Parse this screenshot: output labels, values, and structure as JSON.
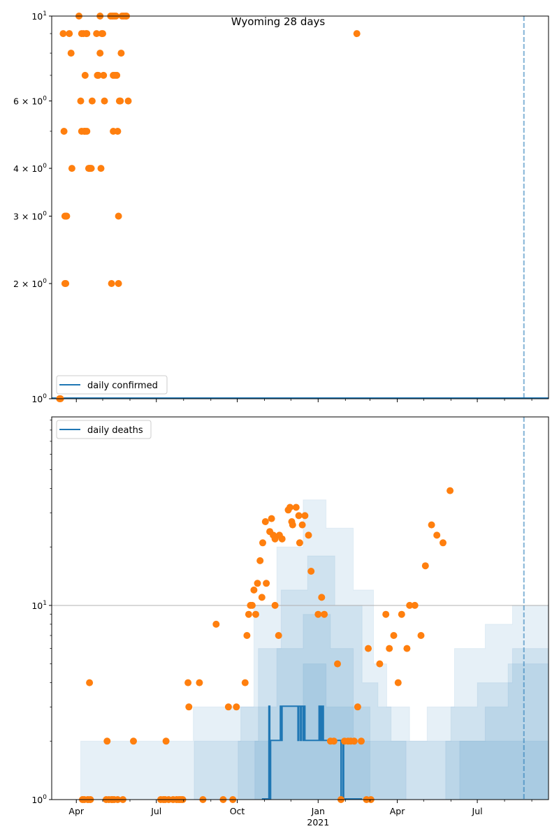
{
  "chart_data": [
    {
      "type": "scatter",
      "title": "Wyoming 28 days",
      "yscale": "log",
      "ylim": [
        1,
        10
      ],
      "xlim": [
        "2020-03-04",
        "2021-09-20"
      ],
      "legend": {
        "entries": [
          "daily confirmed"
        ],
        "placement": "lower-left"
      },
      "y_ticks": [
        {
          "value": 1,
          "base": "10",
          "exp": "0",
          "coef": ""
        },
        {
          "value": 2,
          "base": "10",
          "exp": "0",
          "coef": "2 × "
        },
        {
          "value": 3,
          "base": "10",
          "exp": "0",
          "coef": "3 × "
        },
        {
          "value": 4,
          "base": "10",
          "exp": "0",
          "coef": "4 × "
        },
        {
          "value": 6,
          "base": "10",
          "exp": "0",
          "coef": "6 × "
        },
        {
          "value": 10,
          "base": "10",
          "exp": "1",
          "coef": ""
        }
      ],
      "vline_date": "2021-08-23",
      "line_series": {
        "name": "daily confirmed",
        "color": "#1f77b4",
        "constant_value": 1
      },
      "scatter_color": "#ff7f0e",
      "points": [
        [
          "2020-03-13",
          1
        ],
        [
          "2020-03-14",
          1
        ],
        [
          "2020-03-17",
          9
        ],
        [
          "2020-03-18",
          5
        ],
        [
          "2020-03-19",
          2
        ],
        [
          "2020-03-20",
          2
        ],
        [
          "2020-03-19",
          3
        ],
        [
          "2020-03-20",
          3
        ],
        [
          "2020-03-21",
          3
        ],
        [
          "2020-03-24",
          9
        ],
        [
          "2020-03-26",
          8
        ],
        [
          "2020-03-27",
          4
        ],
        [
          "2020-04-04",
          10
        ],
        [
          "2020-04-06",
          6
        ],
        [
          "2020-04-07",
          5
        ],
        [
          "2020-04-07",
          9
        ],
        [
          "2020-04-09",
          9
        ],
        [
          "2020-04-10",
          5
        ],
        [
          "2020-04-11",
          7
        ],
        [
          "2020-04-11",
          5
        ],
        [
          "2020-04-12",
          9
        ],
        [
          "2020-04-13",
          5
        ],
        [
          "2020-04-13",
          9
        ],
        [
          "2020-04-15",
          4
        ],
        [
          "2020-04-16",
          4
        ],
        [
          "2020-04-17",
          4
        ],
        [
          "2020-04-18",
          4
        ],
        [
          "2020-04-19",
          6
        ],
        [
          "2020-04-24",
          9
        ],
        [
          "2020-04-25",
          7
        ],
        [
          "2020-04-26",
          7
        ],
        [
          "2020-04-28",
          10
        ],
        [
          "2020-04-28",
          8
        ],
        [
          "2020-04-29",
          4
        ],
        [
          "2020-04-30",
          9
        ],
        [
          "2020-05-01",
          9
        ],
        [
          "2020-05-02",
          7
        ],
        [
          "2020-05-03",
          6
        ],
        [
          "2020-05-10",
          10
        ],
        [
          "2020-05-11",
          2
        ],
        [
          "2020-05-12",
          10
        ],
        [
          "2020-05-13",
          5
        ],
        [
          "2020-05-13",
          7
        ],
        [
          "2020-05-14",
          10
        ],
        [
          "2020-05-15",
          7
        ],
        [
          "2020-05-16",
          10
        ],
        [
          "2020-05-17",
          7
        ],
        [
          "2020-05-18",
          5
        ],
        [
          "2020-05-19",
          2
        ],
        [
          "2020-05-19",
          3
        ],
        [
          "2020-05-20",
          6
        ],
        [
          "2020-05-21",
          6
        ],
        [
          "2020-05-22",
          8
        ],
        [
          "2020-05-23",
          10
        ],
        [
          "2020-05-25",
          10
        ],
        [
          "2020-05-27",
          10
        ],
        [
          "2020-05-28",
          10
        ],
        [
          "2020-05-30",
          6
        ],
        [
          "2021-02-14",
          9
        ]
      ]
    },
    {
      "type": "scatter",
      "title": "",
      "yscale": "log",
      "ylim": [
        1,
        93.5
      ],
      "xlim": [
        "2020-03-04",
        "2021-09-20"
      ],
      "legend": {
        "entries": [
          "daily deaths"
        ],
        "placement": "upper-left"
      },
      "y_ticks": [
        {
          "value": 1,
          "base": "10",
          "exp": "0",
          "coef": ""
        },
        {
          "value": 10,
          "base": "10",
          "exp": "1",
          "coef": ""
        }
      ],
      "x_ticks": [
        {
          "date": "2020-04-01",
          "label": "Apr",
          "sub": ""
        },
        {
          "date": "2020-07-01",
          "label": "Jul",
          "sub": ""
        },
        {
          "date": "2020-10-01",
          "label": "Oct",
          "sub": ""
        },
        {
          "date": "2021-01-01",
          "label": "Jan",
          "sub": "2021"
        },
        {
          "date": "2021-04-01",
          "label": "Apr",
          "sub": ""
        },
        {
          "date": "2021-07-01",
          "label": "Jul",
          "sub": ""
        }
      ],
      "hgrid_value": 10,
      "vline_date": "2021-08-23",
      "line_series": {
        "name": "daily deaths",
        "color": "#1f77b4",
        "steps": [
          [
            "2020-10-29",
            1
          ],
          [
            "2020-11-05",
            1
          ],
          [
            "2020-11-06",
            3
          ],
          [
            "2020-11-07",
            1
          ],
          [
            "2020-11-08",
            2
          ],
          [
            "2020-11-18",
            2
          ],
          [
            "2020-11-19",
            3
          ],
          [
            "2020-11-20",
            2
          ],
          [
            "2020-11-21",
            3
          ],
          [
            "2020-12-08",
            3
          ],
          [
            "2020-12-09",
            2
          ],
          [
            "2020-12-10",
            3
          ],
          [
            "2020-12-12",
            2
          ],
          [
            "2020-12-13",
            3
          ],
          [
            "2020-12-15",
            2
          ],
          [
            "2020-12-16",
            3
          ],
          [
            "2020-12-17",
            2
          ],
          [
            "2021-01-01",
            2
          ],
          [
            "2021-01-02",
            3
          ],
          [
            "2021-01-03",
            2
          ],
          [
            "2021-01-04",
            3
          ],
          [
            "2021-01-05",
            2
          ],
          [
            "2021-01-06",
            3
          ],
          [
            "2021-01-07",
            2
          ],
          [
            "2021-01-25",
            2
          ],
          [
            "2021-01-27",
            1
          ],
          [
            "2021-01-29",
            2
          ],
          [
            "2021-01-30",
            1
          ],
          [
            "2021-02-20",
            1
          ]
        ]
      },
      "bands": [
        {
          "name": "outer",
          "opacity": 0.11,
          "profile": [
            [
              "2020-04-05",
              1
            ],
            [
              "2020-04-06",
              2
            ],
            [
              "2020-08-12",
              3
            ],
            [
              "2020-10-10",
              3
            ],
            [
              "2020-10-20",
              10
            ],
            [
              "2020-11-15",
              20
            ],
            [
              "2020-12-15",
              35
            ],
            [
              "2021-01-10",
              25
            ],
            [
              "2021-02-10",
              12
            ],
            [
              "2021-03-05",
              5
            ],
            [
              "2021-03-20",
              3
            ],
            [
              "2021-04-15",
              2
            ],
            [
              "2021-05-05",
              3
            ],
            [
              "2021-06-05",
              6
            ],
            [
              "2021-07-10",
              8
            ],
            [
              "2021-08-10",
              10
            ],
            [
              "2021-09-20",
              14
            ]
          ]
        },
        {
          "name": "mid-outer",
          "opacity": 0.11,
          "profile": [
            [
              "2020-08-12",
              1
            ],
            [
              "2020-08-13",
              2
            ],
            [
              "2020-10-05",
              3
            ],
            [
              "2020-10-25",
              6
            ],
            [
              "2020-11-20",
              12
            ],
            [
              "2020-12-20",
              18
            ],
            [
              "2021-01-20",
              10
            ],
            [
              "2021-02-20",
              4
            ],
            [
              "2021-03-10",
              3
            ],
            [
              "2021-03-25",
              2
            ],
            [
              "2021-05-20",
              2
            ],
            [
              "2021-06-01",
              3
            ],
            [
              "2021-07-01",
              4
            ],
            [
              "2021-08-10",
              6
            ],
            [
              "2021-09-20",
              6
            ]
          ]
        },
        {
          "name": "mid-inner",
          "opacity": 0.11,
          "profile": [
            [
              "2020-10-01",
              1
            ],
            [
              "2020-10-02",
              2
            ],
            [
              "2020-10-25",
              3
            ],
            [
              "2020-11-15",
              6
            ],
            [
              "2020-12-15",
              9
            ],
            [
              "2021-01-15",
              6
            ],
            [
              "2021-02-10",
              3
            ],
            [
              "2021-03-01",
              2
            ],
            [
              "2021-04-10",
              2
            ],
            [
              "2021-04-11",
              1
            ],
            [
              "2021-05-25",
              1
            ],
            [
              "2021-05-26",
              2
            ],
            [
              "2021-07-10",
              3
            ],
            [
              "2021-08-05",
              5
            ],
            [
              "2021-09-20",
              5
            ]
          ]
        },
        {
          "name": "inner",
          "opacity": 0.11,
          "profile": [
            [
              "2020-10-20",
              1
            ],
            [
              "2020-10-21",
              2
            ],
            [
              "2020-11-20",
              3
            ],
            [
              "2020-12-15",
              5
            ],
            [
              "2021-01-10",
              3
            ],
            [
              "2021-02-10",
              2
            ],
            [
              "2021-03-01",
              1
            ],
            [
              "2021-06-10",
              1
            ],
            [
              "2021-06-11",
              2
            ],
            [
              "2021-09-20",
              2
            ]
          ]
        }
      ],
      "scatter_color": "#ff7f0e",
      "points": [
        [
          "2020-04-08",
          1
        ],
        [
          "2020-04-10",
          1
        ],
        [
          "2020-04-14",
          1
        ],
        [
          "2020-04-16",
          4
        ],
        [
          "2020-04-17",
          1
        ],
        [
          "2020-05-06",
          2
        ],
        [
          "2020-05-05",
          1
        ],
        [
          "2020-05-08",
          1
        ],
        [
          "2020-05-11",
          1
        ],
        [
          "2020-05-12",
          1
        ],
        [
          "2020-05-14",
          1
        ],
        [
          "2020-05-18",
          1
        ],
        [
          "2020-06-05",
          2
        ],
        [
          "2020-05-24",
          1
        ],
        [
          "2020-07-06",
          1
        ],
        [
          "2020-07-09",
          1
        ],
        [
          "2020-07-11",
          1
        ],
        [
          "2020-07-12",
          2
        ],
        [
          "2020-07-15",
          1
        ],
        [
          "2020-07-20",
          1
        ],
        [
          "2020-07-24",
          1
        ],
        [
          "2020-07-27",
          1
        ],
        [
          "2020-07-29",
          1
        ],
        [
          "2020-07-31",
          1
        ],
        [
          "2020-08-06",
          4
        ],
        [
          "2020-08-07",
          3
        ],
        [
          "2020-08-19",
          4
        ],
        [
          "2020-08-23",
          1
        ],
        [
          "2020-09-07",
          8
        ],
        [
          "2020-09-15",
          1
        ],
        [
          "2020-09-21",
          3
        ],
        [
          "2020-09-26",
          1
        ],
        [
          "2020-09-30",
          3
        ],
        [
          "2020-10-10",
          4
        ],
        [
          "2020-10-12",
          7
        ],
        [
          "2020-10-14",
          9
        ],
        [
          "2020-10-16",
          10
        ],
        [
          "2020-10-18",
          10
        ],
        [
          "2020-10-20",
          12
        ],
        [
          "2020-10-22",
          9
        ],
        [
          "2020-10-24",
          13
        ],
        [
          "2020-10-27",
          17
        ],
        [
          "2020-10-29",
          11
        ],
        [
          "2020-10-30",
          21
        ],
        [
          "2020-11-02",
          27
        ],
        [
          "2020-11-03",
          13
        ],
        [
          "2020-11-07",
          24
        ],
        [
          "2020-11-09",
          28
        ],
        [
          "2020-11-11",
          23
        ],
        [
          "2020-11-13",
          22
        ],
        [
          "2020-11-13",
          10
        ],
        [
          "2020-11-17",
          7
        ],
        [
          "2020-11-18",
          23
        ],
        [
          "2020-11-21",
          22
        ],
        [
          "2020-11-28",
          31
        ],
        [
          "2020-11-30",
          32
        ],
        [
          "2020-12-02",
          27
        ],
        [
          "2020-12-03",
          26
        ],
        [
          "2020-12-07",
          32
        ],
        [
          "2020-12-10",
          29
        ],
        [
          "2020-12-11",
          21
        ],
        [
          "2020-12-14",
          26
        ],
        [
          "2020-12-17",
          29
        ],
        [
          "2020-12-21",
          23
        ],
        [
          "2020-12-24",
          15
        ],
        [
          "2021-01-01",
          9
        ],
        [
          "2021-01-05",
          11
        ],
        [
          "2021-01-08",
          9
        ],
        [
          "2021-01-15",
          2
        ],
        [
          "2021-01-19",
          2
        ],
        [
          "2021-01-23",
          5
        ],
        [
          "2021-01-27",
          1
        ],
        [
          "2021-01-31",
          2
        ],
        [
          "2021-02-04",
          2
        ],
        [
          "2021-02-07",
          2
        ],
        [
          "2021-02-11",
          2
        ],
        [
          "2021-02-15",
          3
        ],
        [
          "2021-02-19",
          2
        ],
        [
          "2021-02-25",
          1
        ],
        [
          "2021-02-27",
          6
        ],
        [
          "2021-03-02",
          1
        ],
        [
          "2021-03-12",
          5
        ],
        [
          "2021-03-19",
          9
        ],
        [
          "2021-03-23",
          6
        ],
        [
          "2021-03-28",
          7
        ],
        [
          "2021-04-02",
          4
        ],
        [
          "2021-04-06",
          9
        ],
        [
          "2021-04-12",
          6
        ],
        [
          "2021-04-15",
          10
        ],
        [
          "2021-04-21",
          10
        ],
        [
          "2021-04-28",
          7
        ],
        [
          "2021-05-03",
          16
        ],
        [
          "2021-05-10",
          26
        ],
        [
          "2021-05-16",
          23
        ],
        [
          "2021-05-23",
          21
        ],
        [
          "2021-05-31",
          39
        ]
      ]
    }
  ]
}
